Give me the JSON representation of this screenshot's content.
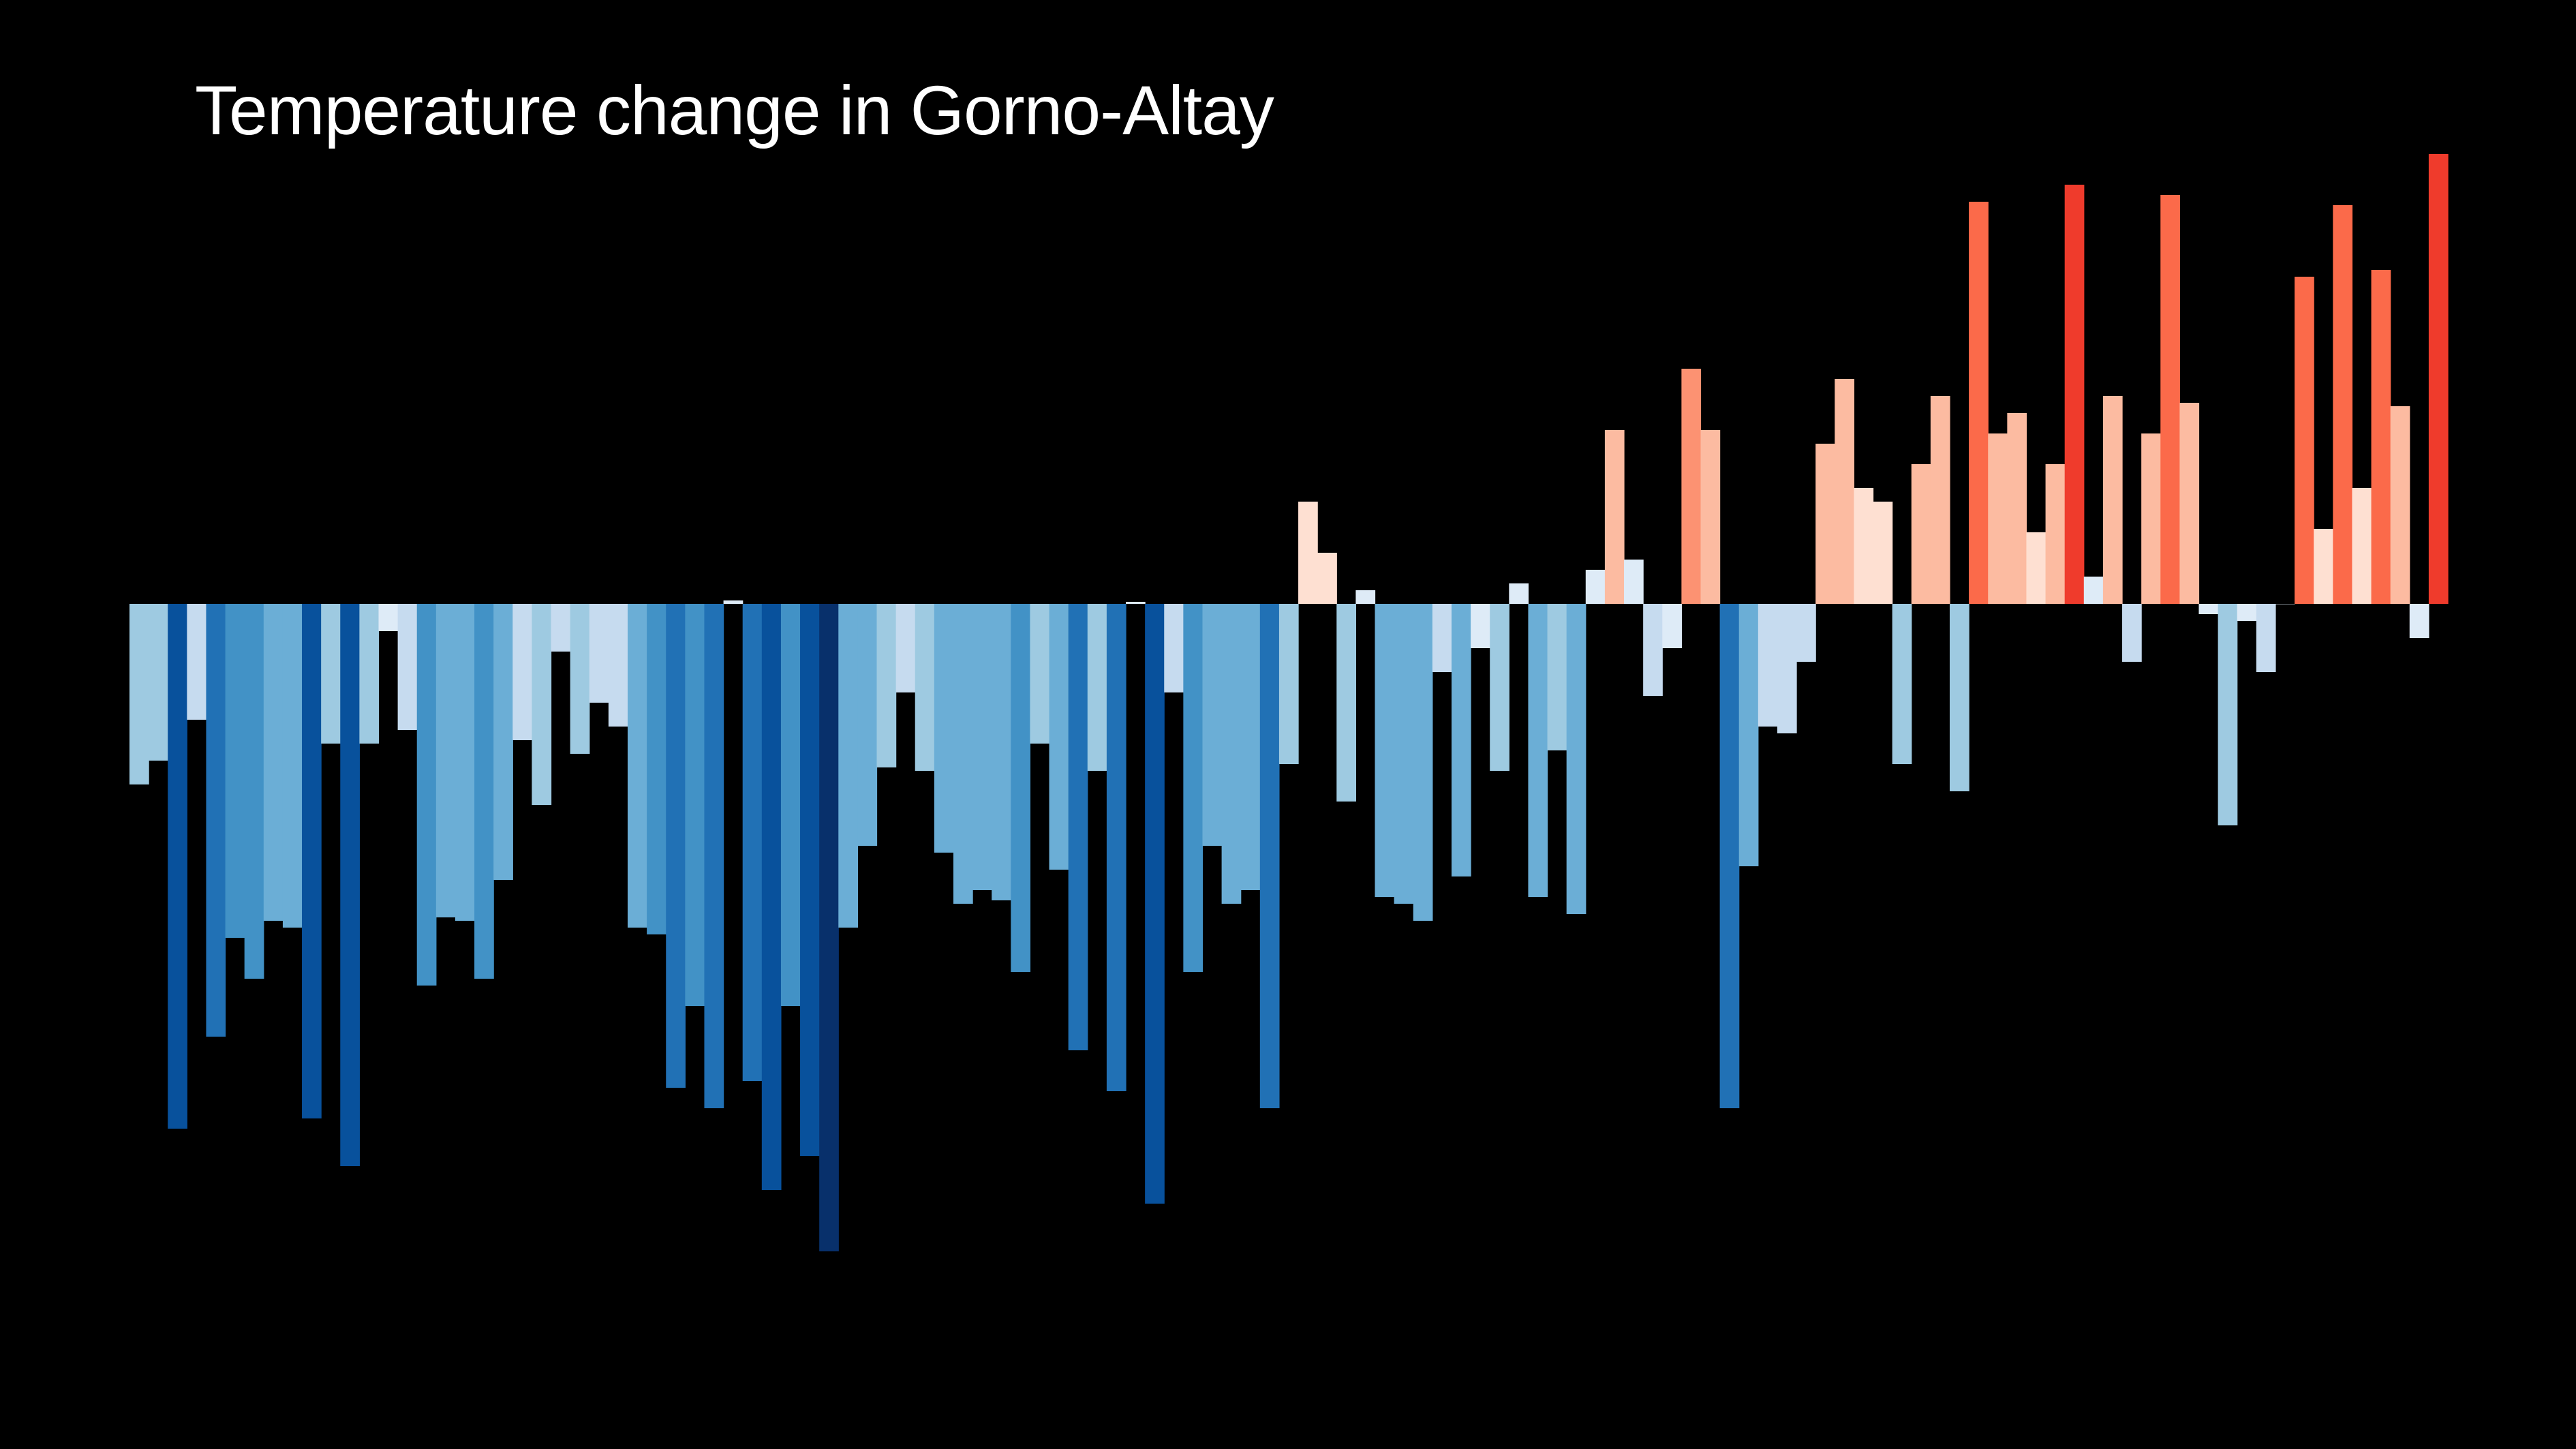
{
  "chart_data": {
    "type": "bar",
    "title": "Temperature change in Gorno-Altay",
    "xlabel": "",
    "ylabel": "",
    "grid": false,
    "legend": "none",
    "axes_visible": false,
    "ylim": [
      -1.0,
      1.0
    ],
    "colors": {
      "background": "#000000",
      "text": "#ffffff",
      "scale": [
        "#08306b",
        "#08519c",
        "#2171b5",
        "#4292c6",
        "#6baed6",
        "#9ecae1",
        "#c6dbef",
        "#deebf7",
        "#fee0d2",
        "#fcbba1",
        "#fc9272",
        "#fb6a4a",
        "#ef3b2c",
        "#cb181d",
        "#a50f15"
      ]
    },
    "values": [
      -0.265,
      -0.23,
      -0.77,
      -0.17,
      -0.635,
      -0.49,
      -0.55,
      -0.465,
      -0.475,
      -0.755,
      -0.205,
      -0.825,
      -0.205,
      -0.04,
      -0.185,
      -0.56,
      -0.46,
      -0.465,
      -0.55,
      -0.405,
      -0.2,
      -0.295,
      -0.07,
      -0.22,
      -0.145,
      -0.18,
      -0.475,
      -0.485,
      -0.71,
      -0.59,
      -0.74,
      0.005,
      -0.7,
      -0.86,
      -0.59,
      -0.81,
      -0.95,
      -0.475,
      -0.355,
      -0.24,
      -0.13,
      -0.245,
      -0.365,
      -0.44,
      -0.42,
      -0.435,
      -0.54,
      -0.205,
      -0.39,
      -0.655,
      -0.245,
      -0.715,
      0.003,
      -0.88,
      -0.13,
      -0.54,
      -0.355,
      -0.44,
      -0.42,
      -0.74,
      -0.235,
      0.15,
      0.075,
      -0.29,
      0.02,
      -0.43,
      -0.44,
      -0.465,
      -0.1,
      -0.4,
      -0.065,
      -0.245,
      0.03,
      -0.43,
      -0.215,
      -0.455,
      0.05,
      0.255,
      0.065,
      -0.135,
      -0.065,
      0.345,
      0.255,
      -0.74,
      -0.385,
      -0.18,
      -0.19,
      -0.085,
      0.235,
      0.33,
      0.17,
      0.15,
      -0.235,
      0.205,
      0.305,
      -0.275,
      0.59,
      0.25,
      0.28,
      0.105,
      0.205,
      0.615,
      0.04,
      0.305,
      -0.085,
      0.25,
      0.6,
      0.295,
      -0.015,
      -0.325,
      -0.025,
      -0.1,
      0.0,
      0.48,
      0.11,
      0.585,
      0.17,
      0.49,
      0.29,
      -0.05,
      0.66
    ]
  }
}
